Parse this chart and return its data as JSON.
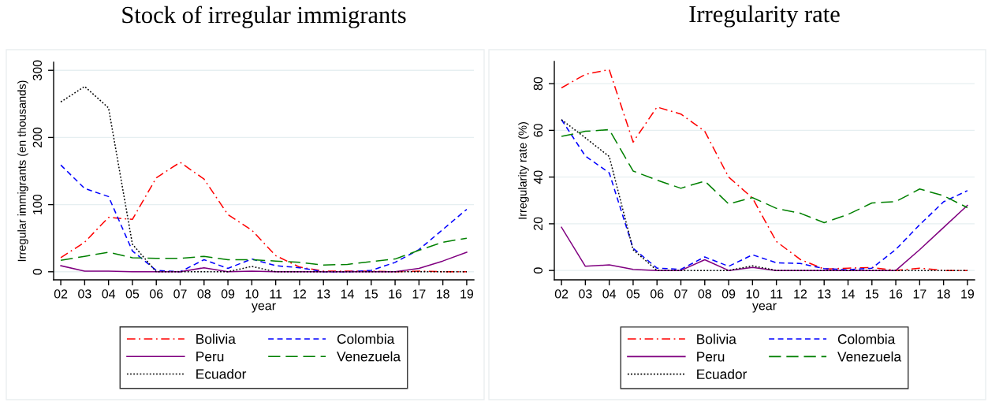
{
  "chart_data": [
    {
      "type": "line",
      "title": "Stock of irregular immigrants",
      "xlabel": "year",
      "ylabel": "Irregular immigrants (en thousands)",
      "categories": [
        "02",
        "03",
        "04",
        "05",
        "06",
        "07",
        "08",
        "09",
        "10",
        "11",
        "12",
        "13",
        "14",
        "15",
        "16",
        "17",
        "18",
        "19"
      ],
      "series": [
        {
          "name": "Bolivia",
          "color": "#ff0000",
          "line_style": "dashdot",
          "values": [
            21,
            44,
            81,
            78,
            140,
            163,
            138,
            85,
            62,
            24,
            7,
            1,
            1,
            1,
            0,
            1,
            0,
            0
          ]
        },
        {
          "name": "Colombia",
          "color": "#0000ff",
          "line_style": "dashed",
          "values": [
            159,
            124,
            112,
            31,
            2,
            0,
            18,
            5,
            19,
            9,
            6,
            0,
            0,
            2,
            14,
            33,
            63,
            93
          ]
        },
        {
          "name": "Peru",
          "color": "#800080",
          "line_style": "solid",
          "values": [
            9,
            1,
            1,
            0,
            0,
            0,
            6,
            0,
            1,
            0,
            0,
            0,
            0,
            0,
            0,
            5,
            16,
            29
          ]
        },
        {
          "name": "Venezuela",
          "color": "#008000",
          "line_style": "longdash",
          "values": [
            17,
            23,
            29,
            21,
            20,
            20,
            23,
            18,
            18,
            16,
            14,
            10,
            11,
            15,
            19,
            32,
            44,
            50
          ]
        },
        {
          "name": "Ecuador",
          "color": "#000000",
          "line_style": "dotted",
          "values": [
            253,
            276,
            244,
            41,
            0,
            0,
            0,
            0,
            8,
            0,
            0,
            0,
            0,
            0,
            0,
            0,
            0,
            0
          ]
        }
      ],
      "ylim": [
        -12,
        312
      ],
      "yticks": [
        0,
        100,
        200,
        300
      ],
      "grid": "y",
      "legend": "bottom"
    },
    {
      "type": "line",
      "title": "Irregularity rate",
      "xlabel": "year",
      "ylabel": "Irregularity rate (%)",
      "categories": [
        "02",
        "03",
        "04",
        "05",
        "06",
        "07",
        "08",
        "09",
        "10",
        "11",
        "12",
        "13",
        "14",
        "15",
        "16",
        "17",
        "18",
        "19"
      ],
      "series": [
        {
          "name": "Bolivia",
          "color": "#ff0000",
          "line_style": "dashdot",
          "values": [
            78.2,
            84,
            86,
            55,
            70,
            67,
            59.6,
            40,
            31,
            12.4,
            4.7,
            0.6,
            1,
            1.3,
            0,
            1,
            0,
            0
          ]
        },
        {
          "name": "Colombia",
          "color": "#0000ff",
          "line_style": "dashed",
          "values": [
            64.6,
            49,
            41.8,
            9.5,
            1,
            0.5,
            5.8,
            1.8,
            6.7,
            3.3,
            3,
            0.8,
            0.3,
            1,
            9,
            19.6,
            29.4,
            34.2
          ]
        },
        {
          "name": "Peru",
          "color": "#800080",
          "line_style": "solid",
          "values": [
            18.5,
            1.8,
            2.4,
            0.5,
            0,
            0,
            4.6,
            0,
            1.3,
            0,
            0,
            0,
            0,
            0,
            0,
            8.9,
            18.4,
            27.9
          ]
        },
        {
          "name": "Venezuela",
          "color": "#008000",
          "line_style": "longdash",
          "values": [
            57.4,
            59.6,
            60.3,
            42.6,
            38.7,
            35.2,
            38.3,
            28.5,
            31.2,
            26.6,
            24.5,
            20.5,
            24,
            28.9,
            29.5,
            34.9,
            32,
            26.9
          ]
        },
        {
          "name": "Ecuador",
          "color": "#000000",
          "line_style": "dotted",
          "values": [
            64.6,
            56.8,
            48.8,
            8.9,
            0,
            0,
            0,
            0,
            2,
            0,
            0,
            0,
            0,
            0,
            0,
            0,
            0,
            0
          ]
        }
      ],
      "ylim": [
        -4,
        89.5
      ],
      "yticks": [
        0,
        20,
        40,
        60,
        80
      ],
      "grid": "y",
      "legend": "bottom"
    }
  ]
}
